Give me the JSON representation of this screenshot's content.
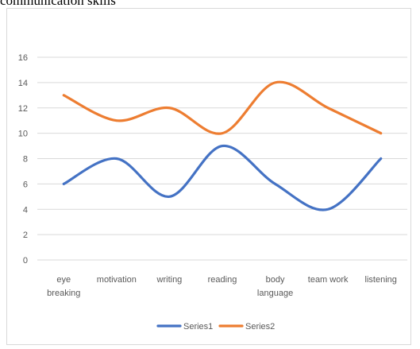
{
  "caption": "communication skills",
  "chart_data": {
    "type": "line",
    "smooth": true,
    "categories": [
      [
        "eye",
        "breaking"
      ],
      [
        "motivation"
      ],
      [
        "writing"
      ],
      [
        "reading"
      ],
      [
        "body",
        "language"
      ],
      [
        "team work"
      ],
      [
        "listening"
      ]
    ],
    "series": [
      {
        "name": "Series1",
        "color": "#4472c4",
        "values": [
          6,
          8,
          5,
          9,
          6,
          4,
          8
        ]
      },
      {
        "name": "Series2",
        "color": "#ed7d31",
        "values": [
          13,
          11,
          12,
          10,
          14,
          12,
          10
        ]
      }
    ],
    "ylim": [
      0,
      16
    ],
    "yticks": [
      0,
      2,
      4,
      6,
      8,
      10,
      12,
      14,
      16
    ],
    "grid": true,
    "legend": "bottom"
  }
}
